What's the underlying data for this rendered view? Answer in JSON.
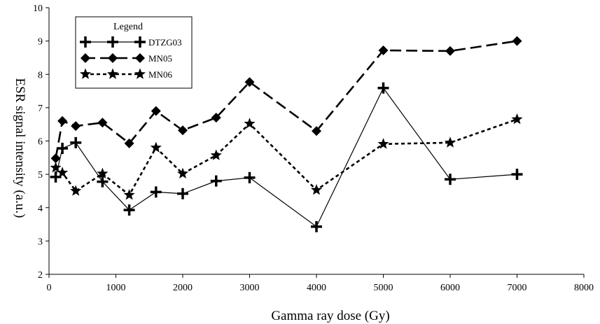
{
  "chart_data": {
    "type": "line",
    "title": "",
    "xlabel": "Gamma ray dose (Gy)",
    "ylabel": "ESR signal intensity (a.u.)",
    "xlim": [
      0,
      8000
    ],
    "ylim": [
      2,
      10
    ],
    "xticks": [
      0,
      1000,
      2000,
      3000,
      4000,
      5000,
      6000,
      7000,
      8000
    ],
    "yticks": [
      2,
      3,
      4,
      5,
      6,
      7,
      8,
      9,
      10
    ],
    "grid": false,
    "legend": {
      "title": "Legend",
      "position": "top-left"
    },
    "series": [
      {
        "name": "DTZG03",
        "line_style": "solid",
        "marker": "plus",
        "x": [
          100,
          200,
          400,
          800,
          1200,
          1600,
          2000,
          2500,
          3000,
          4000,
          5000,
          6000,
          7000
        ],
        "y": [
          4.92,
          5.78,
          5.95,
          4.78,
          3.93,
          4.47,
          4.42,
          4.8,
          4.9,
          3.43,
          7.59,
          4.85,
          5.0
        ]
      },
      {
        "name": "MN05",
        "line_style": "long-dash",
        "marker": "diamond",
        "x": [
          100,
          200,
          400,
          800,
          1200,
          1600,
          2000,
          2500,
          3000,
          4000,
          5000,
          6000,
          7000
        ],
        "y": [
          5.48,
          6.6,
          6.45,
          6.55,
          5.93,
          6.9,
          6.32,
          6.7,
          7.77,
          6.3,
          8.72,
          8.7,
          9.0
        ]
      },
      {
        "name": "MN06",
        "line_style": "short-dash",
        "marker": "star",
        "x": [
          100,
          200,
          400,
          800,
          1200,
          1600,
          2000,
          2500,
          3000,
          4000,
          5000,
          6000,
          7000
        ],
        "y": [
          5.2,
          5.05,
          4.5,
          5.02,
          4.38,
          5.8,
          5.02,
          5.57,
          6.52,
          4.53,
          5.91,
          5.95,
          6.65
        ]
      }
    ]
  }
}
